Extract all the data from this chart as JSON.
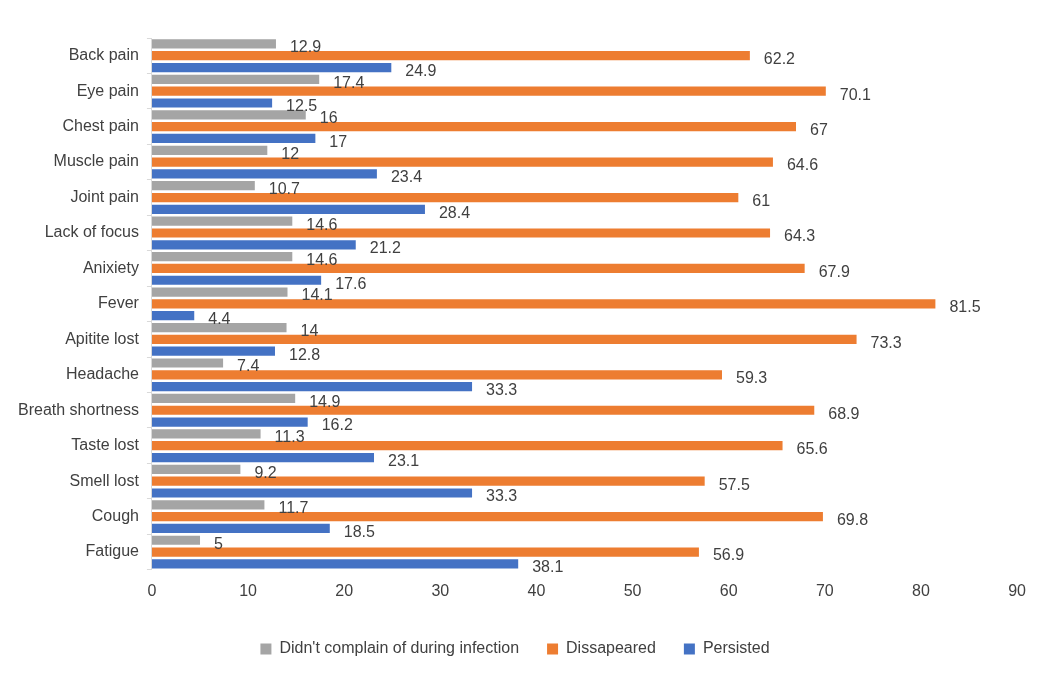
{
  "chart_data": {
    "type": "bar",
    "orientation": "horizontal",
    "categories": [
      "Back pain",
      "Eye pain",
      "Chest pain",
      "Muscle pain",
      "Joint pain",
      "Lack of focus",
      "Anixiety",
      "Fever",
      "Apitite lost",
      "Headache",
      "Breath shortness",
      "Taste lost",
      "Smell lost",
      "Cough",
      "Fatigue"
    ],
    "series": [
      {
        "name": "Didn't complain of during infection",
        "color": "#a5a5a5",
        "values": [
          12.9,
          17.4,
          16,
          12,
          10.7,
          14.6,
          14.6,
          14.1,
          14,
          7.4,
          14.9,
          11.3,
          9.2,
          11.7,
          5
        ]
      },
      {
        "name": "Dissapeared",
        "color": "#ed7d31",
        "values": [
          62.2,
          70.1,
          67,
          64.6,
          61,
          64.3,
          67.9,
          81.5,
          73.3,
          59.3,
          68.9,
          65.6,
          57.5,
          69.8,
          56.9
        ]
      },
      {
        "name": "Persisted",
        "color": "#4472c4",
        "values": [
          24.9,
          12.5,
          17,
          23.4,
          28.4,
          21.2,
          17.6,
          4.4,
          12.8,
          33.3,
          16.2,
          23.1,
          33.3,
          18.5,
          38.1
        ]
      }
    ],
    "xlim": [
      0,
      90
    ],
    "xticks": [
      0,
      10,
      20,
      30,
      40,
      50,
      60,
      70,
      80,
      90
    ],
    "grid": false,
    "legend": "bottom",
    "data_labels": true
  }
}
